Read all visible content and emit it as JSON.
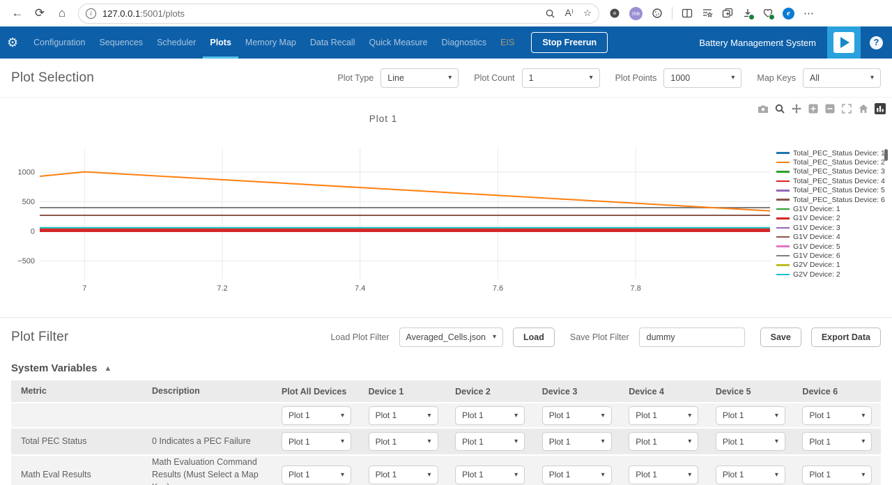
{
  "browser": {
    "url_host": "127.0.0.1",
    "url_path": ":5001/plots",
    "profile_badge": "me"
  },
  "icons": {
    "back": "←",
    "refresh": "⟳",
    "home": "⌂",
    "gear": "⚙",
    "caret": "▾",
    "collapse": "▲",
    "star": "☆",
    "read_aloud": "A⁾",
    "more": "⋯"
  },
  "nav": {
    "items": [
      {
        "label": "Configuration",
        "state": ""
      },
      {
        "label": "Sequences",
        "state": ""
      },
      {
        "label": "Scheduler",
        "state": ""
      },
      {
        "label": "Plots",
        "state": "active"
      },
      {
        "label": "Memory Map",
        "state": ""
      },
      {
        "label": "Data Recall",
        "state": ""
      },
      {
        "label": "Quick Measure",
        "state": ""
      },
      {
        "label": "Diagnostics",
        "state": ""
      },
      {
        "label": "EIS",
        "state": "disabled"
      }
    ],
    "stop_button": "Stop Freerun",
    "app_title": "Battery Management System",
    "help": "?"
  },
  "plot_selection": {
    "title": "Plot Selection",
    "controls": [
      {
        "label": "Plot Type",
        "value": "Line"
      },
      {
        "label": "Plot Count",
        "value": "1"
      },
      {
        "label": "Plot Points",
        "value": "1000"
      },
      {
        "label": "Map Keys",
        "value": "All"
      }
    ]
  },
  "chart_data": {
    "type": "line",
    "title": "Plot 1",
    "xlabel": "",
    "ylabel": "",
    "xlim": [
      6.935,
      7.995
    ],
    "ylim": [
      -800,
      1400
    ],
    "grid": true,
    "legend_position": "right",
    "x_ticks": [
      {
        "v": 7,
        "label": "7"
      },
      {
        "v": 7.2,
        "label": "7.2"
      },
      {
        "v": 7.4,
        "label": "7.4"
      },
      {
        "v": 7.6,
        "label": "7.6"
      },
      {
        "v": 7.8,
        "label": "7.8"
      }
    ],
    "y_ticks": [
      {
        "v": -500,
        "label": "−500"
      },
      {
        "v": 0,
        "label": "0"
      },
      {
        "v": 500,
        "label": "500"
      },
      {
        "v": 1000,
        "label": "1000"
      }
    ],
    "series": [
      {
        "name": "Total_PEC_Status Device: 1",
        "color": "#1f77b4",
        "x": [
          6.935,
          7.995
        ],
        "y": [
          45,
          45
        ]
      },
      {
        "name": "Total_PEC_Status Device: 2",
        "color": "#ff7f0e",
        "x": [
          6.935,
          7.0,
          7.995
        ],
        "y": [
          930,
          1005,
          345
        ],
        "front": true
      },
      {
        "name": "Total_PEC_Status Device: 3",
        "color": "#2ca02c",
        "x": [
          6.935,
          7.995
        ],
        "y": [
          30,
          30
        ]
      },
      {
        "name": "Total_PEC_Status Device: 4",
        "color": "#d62728",
        "x": [
          6.935,
          7.995
        ],
        "y": [
          18,
          18
        ],
        "width": 5,
        "front": true
      },
      {
        "name": "Total_PEC_Status Device: 5",
        "color": "#9467bd",
        "x": [
          6.935,
          7.995
        ],
        "y": [
          25,
          25
        ]
      },
      {
        "name": "Total_PEC_Status Device: 6",
        "color": "#8c564b",
        "x": [
          6.935,
          7.995
        ],
        "y": [
          270,
          270
        ]
      },
      {
        "name": "G1V Device: 1",
        "color": "#2ca02c",
        "x": [
          6.935,
          7.995
        ],
        "y": [
          35,
          35
        ]
      },
      {
        "name": "G1V Device: 2",
        "color": "#d62728",
        "x": [
          6.935,
          7.995
        ],
        "y": [
          20,
          20
        ]
      },
      {
        "name": "G1V Device: 3",
        "color": "#9467bd",
        "x": [
          6.935,
          7.995
        ],
        "y": [
          15,
          15
        ]
      },
      {
        "name": "G1V Device: 4",
        "color": "#8c564b",
        "x": [
          6.935,
          7.995
        ],
        "y": [
          28,
          28
        ]
      },
      {
        "name": "G1V Device: 5",
        "color": "#e377c2",
        "x": [
          6.935,
          7.995
        ],
        "y": [
          12,
          12
        ]
      },
      {
        "name": "G1V Device: 6",
        "color": "#7f7f7f",
        "x": [
          6.935,
          7.995
        ],
        "y": [
          400,
          400
        ]
      },
      {
        "name": "G2V Device: 1",
        "color": "#bcbd22",
        "x": [
          6.935,
          7.995
        ],
        "y": [
          48,
          48
        ]
      },
      {
        "name": "G2V Device: 2",
        "color": "#17becf",
        "x": [
          6.935,
          7.995
        ],
        "y": [
          62,
          62
        ]
      }
    ]
  },
  "plot_filter": {
    "title": "Plot Filter",
    "load_label": "Load Plot Filter",
    "load_value": "Averaged_Cells.json",
    "load_button": "Load",
    "save_label": "Save Plot Filter",
    "save_value": "dummy",
    "save_button": "Save",
    "export_button": "Export Data"
  },
  "system_variables": {
    "title": "System Variables",
    "headers": [
      "Metric",
      "Description",
      "Plot All Devices",
      "Device 1",
      "Device 2",
      "Device 3",
      "Device 4",
      "Device 5",
      "Device 6"
    ],
    "rows": [
      {
        "metric": "",
        "description": "",
        "plots": [
          "Plot 1",
          "Plot 1",
          "Plot 1",
          "Plot 1",
          "Plot 1",
          "Plot 1",
          "Plot 1"
        ]
      },
      {
        "metric": "Total PEC Status",
        "description": "0 Indicates a PEC Failure",
        "plots": [
          "Plot 1",
          "Plot 1",
          "Plot 1",
          "Plot 1",
          "Plot 1",
          "Plot 1",
          "Plot 1"
        ]
      },
      {
        "metric": "Math Eval Results",
        "description": "Math Evaluation Command Results (Must Select a Map Key)",
        "plots": [
          "Plot 1",
          "Plot 1",
          "Plot 1",
          "Plot 1",
          "Plot 1",
          "Plot 1",
          "Plot 1"
        ]
      }
    ]
  }
}
